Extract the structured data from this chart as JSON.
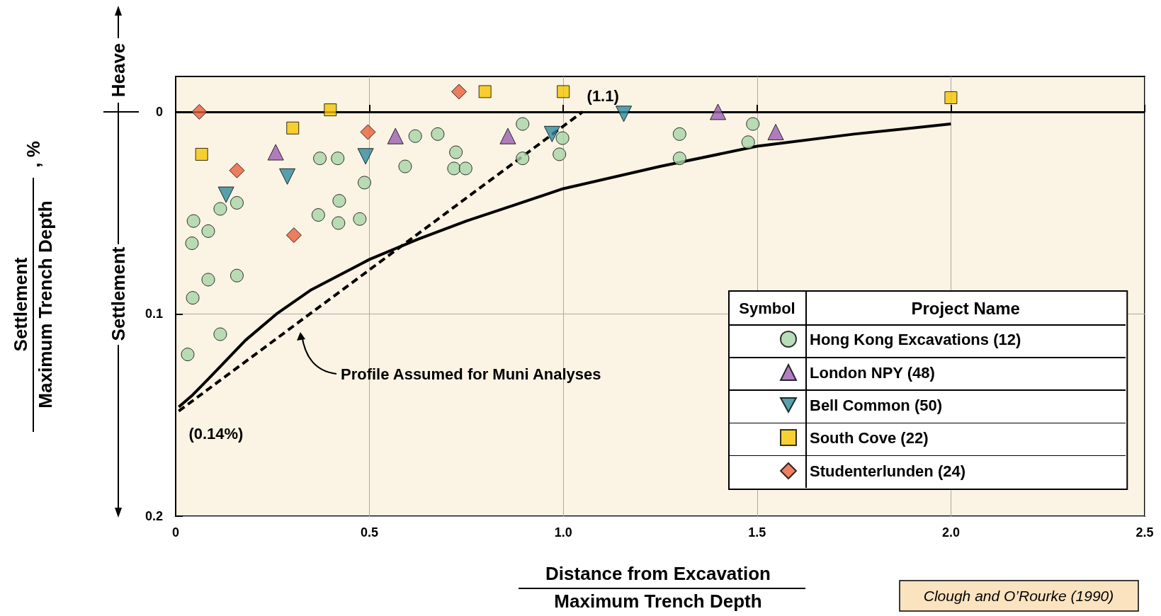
{
  "chart_data": {
    "type": "scatter",
    "xlabel": "Distance from Excavation\nMaximum Trench Depth",
    "ylabel": "Settlement\nMaximum Trench Depth\n, %",
    "legend_title": "Project Name",
    "legend": "bottom right",
    "grid": true,
    "xlim": [
      0,
      2.5
    ],
    "xticks": [
      0,
      0.5,
      {
        "value": 1,
        "label": "1.0"
      },
      1.5,
      {
        "value": 2,
        "label": "2.0"
      },
      2.5
    ],
    "ylim": [
      0.2,
      -0.0175
    ],
    "yticks": [
      0,
      0.1,
      0.2
    ],
    "ref_lines": [
      {
        "axis": "y",
        "value": 0,
        "color": "#000000"
      }
    ],
    "series": [
      {
        "name": "Hong Kong Excavations (12)",
        "marker": "circle",
        "color": "#a8d5a8",
        "x": [
          0.031,
          0.044,
          0.042,
          0.046,
          0.084,
          0.084,
          0.115,
          0.115,
          0.158,
          0.158,
          0.368,
          0.372,
          0.418,
          0.42,
          0.422,
          0.475,
          0.487,
          0.592,
          0.618,
          0.676,
          0.723,
          0.718,
          0.748,
          0.895,
          0.895,
          0.99,
          0.998,
          1.3,
          1.3,
          1.477,
          1.489
        ],
        "values": [
          0.12,
          0.092,
          0.065,
          0.054,
          0.083,
          0.059,
          0.11,
          0.048,
          0.081,
          0.045,
          0.051,
          0.023,
          0.023,
          0.055,
          0.044,
          0.053,
          0.035,
          0.027,
          0.012,
          0.011,
          0.02,
          0.028,
          0.028,
          0.006,
          0.023,
          0.021,
          0.013,
          0.011,
          0.023,
          0.015,
          0.006
        ]
      },
      {
        "name": "London NPY (48)",
        "marker": "triangle",
        "color": "#9b5fb0",
        "x": [
          0.258,
          0.567,
          0.857,
          1.399,
          1.548
        ],
        "values": [
          0.02,
          0.012,
          0.012,
          0.0,
          0.01
        ]
      },
      {
        "name": "Bell Common (50)",
        "marker": "triangle-down",
        "color": "#2d8a9c",
        "x": [
          0.13,
          0.288,
          0.49,
          0.971,
          1.156
        ],
        "values": [
          0.041,
          0.032,
          0.022,
          0.011,
          0.001
        ]
      },
      {
        "name": "South Cove (22)",
        "marker": "square",
        "color": "#f5c400",
        "x": [
          0.067,
          0.302,
          0.399,
          0.798,
          1.0,
          2.0
        ],
        "values": [
          0.021,
          0.008,
          -0.001,
          -0.01,
          -0.01,
          -0.007
        ]
      },
      {
        "name": "Studenterlunden (24)",
        "marker": "diamond",
        "color": "#e8603c",
        "x": [
          0.061,
          0.158,
          0.305,
          0.496,
          0.731
        ],
        "values": [
          0.0,
          0.029,
          0.061,
          0.01,
          -0.01
        ]
      },
      {
        "type": "line",
        "marker": "none",
        "line_style": "solid",
        "color": "#000000",
        "x": [
          0.008,
          0.044,
          0.08,
          0.12,
          0.18,
          0.26,
          0.35,
          0.5,
          0.625,
          0.75,
          0.875,
          1.0,
          1.25,
          1.5,
          1.75,
          2.0
        ],
        "values": [
          0.146,
          0.14,
          0.133,
          0.125,
          0.113,
          0.1,
          0.088,
          0.073,
          0.063,
          0.054,
          0.046,
          0.038,
          0.027,
          0.017,
          0.011,
          0.006
        ]
      },
      {
        "type": "line",
        "marker": "none",
        "line_style": "dashed",
        "color": "#000000",
        "x": [
          0.008,
          1.05
        ],
        "values": [
          0.148,
          0.0
        ]
      }
    ],
    "annotations": [
      {
        "text": "(1.1)",
        "x": 1.05,
        "y": 0
      },
      {
        "text": "(0.14%)",
        "x": 0.008,
        "y": 0.148
      },
      "Profile Assumed for Muni Analyses",
      "Heave",
      "Settlement",
      "Symbol",
      "Clough and O’Rourke (1990)"
    ]
  }
}
